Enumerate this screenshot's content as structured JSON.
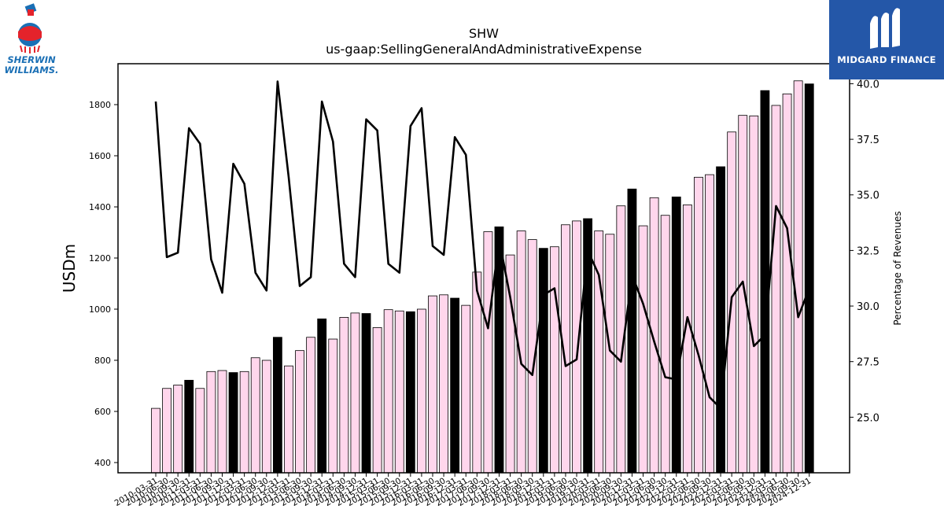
{
  "logos": {
    "left_text": [
      "SHERWIN",
      "WILLIAMS."
    ],
    "right_text": "MIDGARD FINANCE"
  },
  "colors": {
    "bar_q": "#ffd6ec",
    "bar_fy": "#000000",
    "line": "#000000",
    "right_logo_bg": "#2457a8",
    "left_logo_blue": "#1a6fb5",
    "left_logo_red": "#e4232b"
  },
  "chart_data": {
    "type": "bar",
    "title": "SHW",
    "subtitle": "us-gaap:SellingGeneralAndAdministrativeExpense",
    "ylabel": "USDm",
    "y2label": "Percentage of Revenues",
    "ylim": [
      360,
      1960
    ],
    "y2lim": [
      22.5,
      40.9
    ],
    "yticks": [
      400,
      600,
      800,
      1000,
      1200,
      1400,
      1600,
      1800
    ],
    "y2ticks": [
      25.0,
      27.5,
      30.0,
      32.5,
      35.0,
      37.5,
      40.0
    ],
    "categories": [
      "2010-03-31",
      "2010-06-30",
      "2010-09-30",
      "2010-12-31",
      "2011-03-31",
      "2011-06-30",
      "2011-09-30",
      "2011-12-31",
      "2012-03-31",
      "2012-06-30",
      "2012-09-30",
      "2012-12-31",
      "2013-03-31",
      "2013-06-30",
      "2013-09-30",
      "2013-12-31",
      "2014-03-31",
      "2014-06-30",
      "2014-09-30",
      "2014-12-31",
      "2015-03-31",
      "2015-06-30",
      "2015-09-30",
      "2015-12-31",
      "2016-03-31",
      "2016-06-30",
      "2016-09-30",
      "2016-12-31",
      "2017-03-31",
      "2017-06-30",
      "2017-09-30",
      "2017-12-31",
      "2018-03-31",
      "2018-06-30",
      "2018-09-30",
      "2018-12-31",
      "2019-03-31",
      "2019-06-30",
      "2019-09-30",
      "2019-12-31",
      "2020-03-31",
      "2020-06-30",
      "2020-09-30",
      "2020-12-31",
      "2021-03-31",
      "2021-06-30",
      "2021-09-30",
      "2021-12-31",
      "2022-03-31",
      "2022-06-30",
      "2022-09-30",
      "2022-12-31",
      "2023-03-31",
      "2023-06-30",
      "2023-09-30",
      "2023-12-31",
      "2024-03-31",
      "2024-06-30",
      "2024-09-30",
      "2024-12-31"
    ],
    "series": [
      {
        "axis": "left",
        "kind": "bar",
        "values": [
          612,
          690,
          703,
          722,
          690,
          756,
          760,
          752,
          756,
          810,
          800,
          890,
          778,
          838,
          890,
          962,
          883,
          968,
          985,
          983,
          928,
          998,
          993,
          990,
          1000,
          1052,
          1056,
          1043,
          1015,
          1145,
          1303,
          1322,
          1212,
          1306,
          1272,
          1238,
          1244,
          1330,
          1345,
          1354,
          1306,
          1293,
          1404,
          1470,
          1326,
          1436,
          1367,
          1439,
          1408,
          1516,
          1526,
          1557,
          1693,
          1758,
          1756,
          1855,
          1797,
          1842,
          1893,
          1881
        ],
        "annual": [
          false,
          false,
          false,
          true,
          false,
          false,
          false,
          true,
          false,
          false,
          false,
          true,
          false,
          false,
          false,
          true,
          false,
          false,
          false,
          true,
          false,
          false,
          false,
          true,
          false,
          false,
          false,
          true,
          false,
          false,
          false,
          true,
          false,
          false,
          false,
          true,
          false,
          false,
          false,
          true,
          false,
          false,
          false,
          true,
          false,
          false,
          false,
          true,
          false,
          false,
          false,
          true,
          false,
          false,
          false,
          true,
          false,
          false,
          false,
          true
        ]
      },
      {
        "axis": "right",
        "kind": "line",
        "values": [
          39.2,
          32.2,
          32.4,
          38.0,
          37.3,
          32.1,
          30.6,
          36.4,
          35.5,
          31.5,
          30.7,
          40.1,
          35.8,
          30.9,
          31.3,
          39.2,
          37.4,
          31.9,
          31.3,
          38.4,
          37.9,
          31.9,
          31.5,
          38.1,
          38.9,
          32.7,
          32.3,
          37.6,
          36.8,
          30.7,
          29.0,
          33.0,
          30.4,
          27.4,
          26.9,
          30.5,
          30.8,
          27.3,
          27.6,
          32.5,
          31.4,
          28.0,
          27.5,
          31.4,
          30.1,
          28.4,
          26.8,
          26.7,
          29.5,
          27.8,
          25.9,
          25.4,
          30.4,
          31.1,
          28.2,
          28.7,
          34.5,
          33.5,
          29.5,
          30.8
        ]
      }
    ],
    "xtick_labels": [
      "2010-03-31",
      "2010-06-30",
      "2010-09-30",
      "2010-12-31",
      "2011-03-31",
      "2011-06-30",
      "2011-09-30",
      "2011-12-31",
      "2012-03-31",
      "2012-06-30",
      "2012-09-30",
      "2012-12-31",
      "2013-03-31",
      "2013-06-30",
      "2013-09-30",
      "2013-12-31",
      "2014-03-31",
      "2014-06-30",
      "2014-09-30",
      "2014-12-31",
      "2015-03-31",
      "2015-06-30",
      "2015-09-30",
      "2015-12-31",
      "2016-03-31",
      "2016-06-30",
      "2016-09-30",
      "2016-12-31",
      "2017-03-31",
      "2017-06-30",
      "2017-09-30",
      "2017-12-31",
      "2018-03-31",
      "2018-06-30",
      "2018-09-30",
      "2018-12-31",
      "2019-03-31",
      "2019-06-30",
      "2019-09-30",
      "2019-12-31",
      "2020-03-31",
      "2020-06-30",
      "2020-09-30",
      "2020-12-31",
      "2021-03-31",
      "2021-06-30",
      "2021-09-30",
      "2021-12-31",
      "2022-03-31",
      "2022-06-30",
      "2022-09-30",
      "2022-12-31",
      "2023-03-31",
      "2023-06-30",
      "2023-09-30",
      "2023-12-31",
      "2024-03-31",
      "2024-06-30",
      "2024-09-30",
      "2024-12-31"
    ],
    "grid": false
  }
}
